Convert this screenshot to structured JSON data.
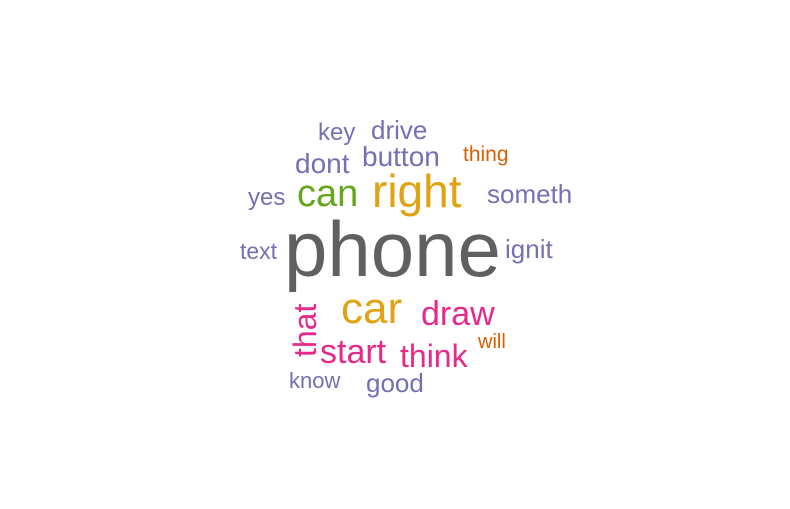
{
  "words": [
    {
      "text": "phone",
      "weight": 1.0,
      "color": "#5f6060"
    },
    {
      "text": "right",
      "weight": 0.55,
      "color": "#e0a314"
    },
    {
      "text": "car",
      "weight": 0.55,
      "color": "#e0a314"
    },
    {
      "text": "can",
      "weight": 0.45,
      "color": "#66a61e"
    },
    {
      "text": "draw",
      "weight": 0.4,
      "color": "#e7298a"
    },
    {
      "text": "start",
      "weight": 0.4,
      "color": "#e7298a"
    },
    {
      "text": "think",
      "weight": 0.38,
      "color": "#e7298a"
    },
    {
      "text": "that",
      "weight": 0.38,
      "color": "#e7298a"
    },
    {
      "text": "button",
      "weight": 0.3,
      "color": "#7570b3"
    },
    {
      "text": "dont",
      "weight": 0.3,
      "color": "#7570b3"
    },
    {
      "text": "drive",
      "weight": 0.28,
      "color": "#7570b3"
    },
    {
      "text": "someth",
      "weight": 0.28,
      "color": "#7570b3"
    },
    {
      "text": "ignit",
      "weight": 0.28,
      "color": "#7570b3"
    },
    {
      "text": "good",
      "weight": 0.28,
      "color": "#7570b3"
    },
    {
      "text": "key",
      "weight": 0.25,
      "color": "#7570b3"
    },
    {
      "text": "yes",
      "weight": 0.25,
      "color": "#7570b3"
    },
    {
      "text": "text",
      "weight": 0.25,
      "color": "#7570b3"
    },
    {
      "text": "know",
      "weight": 0.23,
      "color": "#7570b3"
    },
    {
      "text": "thing",
      "weight": 0.22,
      "color": "#d95f02"
    },
    {
      "text": "will",
      "weight": 0.2,
      "color": "#d95f02"
    }
  ]
}
